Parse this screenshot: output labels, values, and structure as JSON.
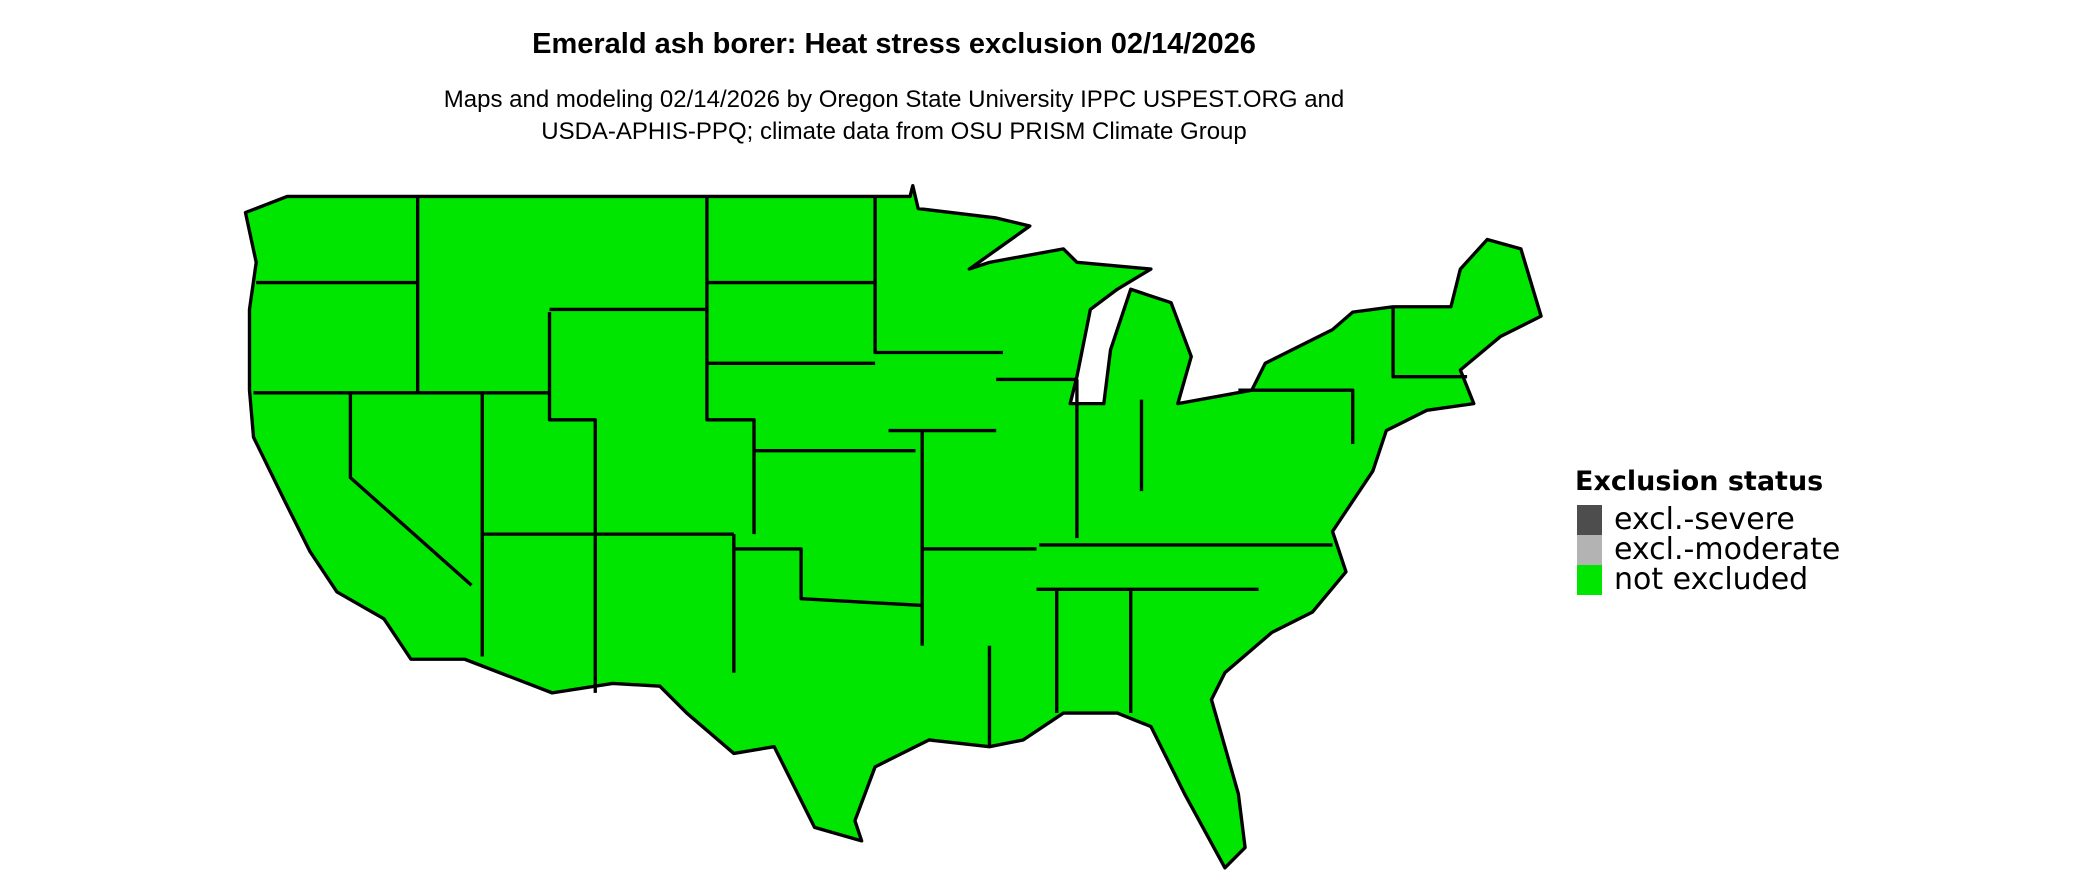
{
  "title": "Emerald ash borer: Heat stress exclusion 02/14/2026",
  "subtitle_lines": [
    "Maps and modeling 02/14/2026 by Oregon State University IPPC USPEST.ORG and",
    "USDA-APHIS-PPQ; climate data from OSU PRISM Climate Group"
  ],
  "map": {
    "region": "contiguous United States",
    "all_states_status": "not excluded",
    "fill_color": "#00e600",
    "border_color": "#000000"
  },
  "legend": {
    "title": "Exclusion status",
    "items": [
      {
        "label": "excl.-severe",
        "color": "#4d4d4d"
      },
      {
        "label": "excl.-moderate",
        "color": "#b3b3b3"
      },
      {
        "label": "not excluded",
        "color": "#00e600"
      }
    ]
  }
}
